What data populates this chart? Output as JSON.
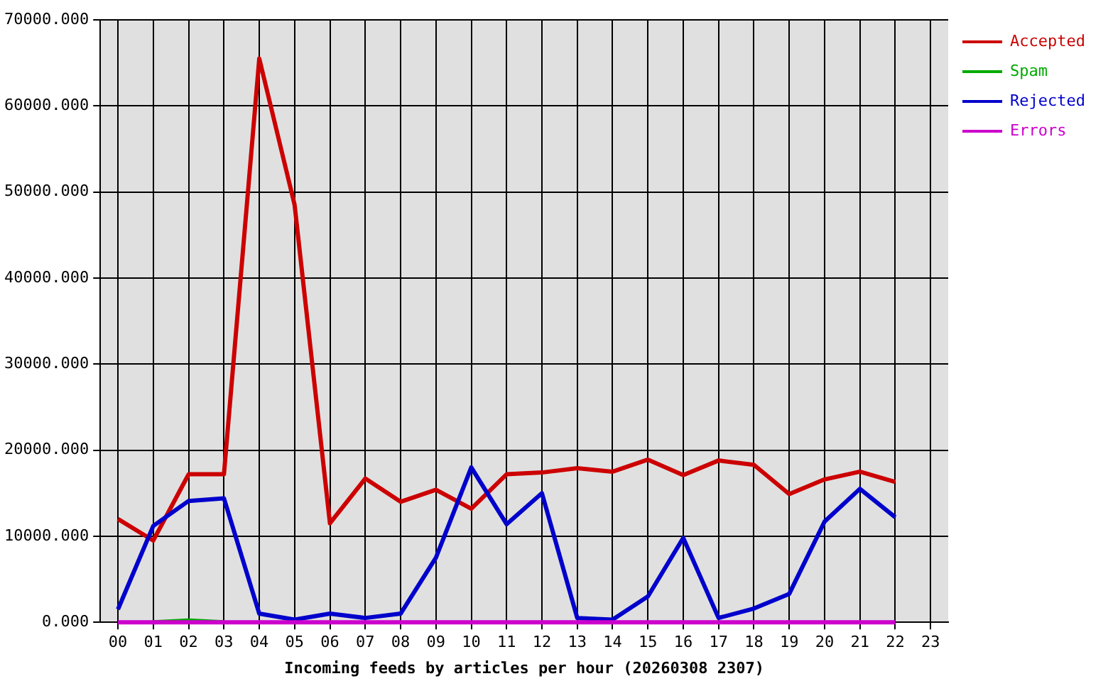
{
  "chart_data": {
    "type": "line",
    "xlabel": "Incoming feeds by articles per hour (20260308 2307)",
    "categories": [
      "00",
      "01",
      "02",
      "03",
      "04",
      "05",
      "06",
      "07",
      "08",
      "09",
      "10",
      "11",
      "12",
      "13",
      "14",
      "15",
      "16",
      "17",
      "18",
      "19",
      "20",
      "21",
      "22",
      "23"
    ],
    "series": [
      {
        "name": "Accepted",
        "color": "#cc0000",
        "values": [
          12000,
          9500,
          17200,
          17200,
          65500,
          48500,
          11500,
          16700,
          14000,
          15400,
          13200,
          17200,
          17400,
          17900,
          17500,
          18900,
          17100,
          18800,
          18300,
          14900,
          16600,
          17500,
          16300,
          null
        ]
      },
      {
        "name": "Spam",
        "color": "#00aa00",
        "values": [
          null,
          0,
          200,
          0,
          null,
          null,
          null,
          null,
          null,
          null,
          null,
          null,
          null,
          null,
          null,
          null,
          null,
          null,
          null,
          null,
          null,
          null,
          null,
          null
        ]
      },
      {
        "name": "Rejected",
        "color": "#0000cc",
        "values": [
          1500,
          11200,
          14100,
          14400,
          1000,
          300,
          1000,
          500,
          1000,
          7500,
          18000,
          11400,
          15000,
          500,
          300,
          3000,
          9800,
          500,
          1600,
          3300,
          11700,
          15500,
          12200,
          null
        ]
      },
      {
        "name": "Errors",
        "color": "#cc00cc",
        "values": [
          0,
          0,
          0,
          0,
          0,
          0,
          0,
          0,
          0,
          0,
          0,
          0,
          0,
          0,
          0,
          0,
          0,
          0,
          0,
          0,
          0,
          0,
          0,
          null
        ]
      }
    ],
    "ylim": [
      0,
      70000
    ],
    "yticks": [
      {
        "value": 0,
        "label": "0.000"
      },
      {
        "value": 10000,
        "label": "10000.000"
      },
      {
        "value": 20000,
        "label": "20000.000"
      },
      {
        "value": 30000,
        "label": "30000.000"
      },
      {
        "value": 40000,
        "label": "40000.000"
      },
      {
        "value": 50000,
        "label": "50000.000"
      },
      {
        "value": 60000,
        "label": "60000.000"
      },
      {
        "value": 70000,
        "label": "70000.000"
      }
    ],
    "grid": true,
    "legend": "top right",
    "marker": "none",
    "line_style": "solid"
  }
}
